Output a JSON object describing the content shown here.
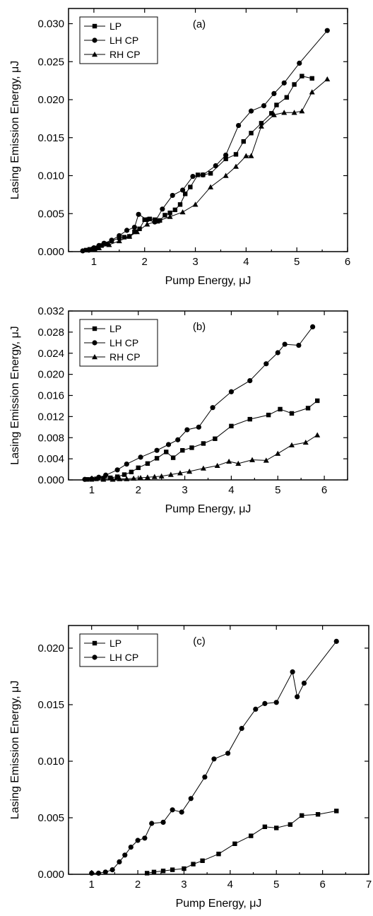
{
  "chart_data": [
    {
      "type": "line",
      "annotation": "(a)",
      "xlabel": "Pump Energy, μJ",
      "ylabel": "Lasing Emission Energy, μJ",
      "xlim": [
        0.5,
        6
      ],
      "ylim": [
        0,
        0.032
      ],
      "xticks": [
        1,
        2,
        3,
        4,
        5,
        6
      ],
      "xtick_labels": [
        "1",
        "2",
        "3",
        "4",
        "5",
        "6"
      ],
      "yticks": [
        0,
        0.005,
        0.01,
        0.015,
        0.02,
        0.025,
        0.03
      ],
      "ytick_labels": [
        "0.000",
        "0.005",
        "0.010",
        "0.015",
        "0.020",
        "0.025",
        "0.030"
      ],
      "legend_position": "top-left",
      "series": [
        {
          "name": "LP",
          "marker": "square",
          "x": [
            0.85,
            0.92,
            0.98,
            1.02,
            1.08,
            1.15,
            1.25,
            1.35,
            1.5,
            1.6,
            1.7,
            1.8,
            1.9,
            2.0,
            2.1,
            2.2,
            2.3,
            2.4,
            2.5,
            2.6,
            2.7,
            2.8,
            2.9,
            3.05,
            3.15,
            3.3,
            3.6,
            3.8,
            3.95,
            4.1,
            4.3,
            4.5,
            4.6,
            4.8,
            4.95,
            5.1,
            5.3
          ],
          "y": [
            0.0002,
            0.0003,
            0.0003,
            0.0003,
            0.0005,
            0.0008,
            0.001,
            0.0014,
            0.0018,
            0.0019,
            0.002,
            0.0026,
            0.003,
            0.0042,
            0.0043,
            0.0042,
            0.0041,
            0.0048,
            0.0051,
            0.0055,
            0.0062,
            0.0076,
            0.0085,
            0.0101,
            0.0101,
            0.0103,
            0.0122,
            0.0128,
            0.0145,
            0.0156,
            0.0169,
            0.0182,
            0.0193,
            0.0203,
            0.022,
            0.0231,
            0.0228
          ]
        },
        {
          "name": "LH CP",
          "marker": "circle",
          "x": [
            0.78,
            0.9,
            1.0,
            1.1,
            1.2,
            1.35,
            1.5,
            1.65,
            1.8,
            1.88,
            2.05,
            2.2,
            2.35,
            2.55,
            2.75,
            2.95,
            3.15,
            3.4,
            3.6,
            3.85,
            4.1,
            4.35,
            4.55,
            4.75,
            5.05,
            5.6
          ],
          "y": [
            0.0001,
            0.0002,
            0.0005,
            0.0008,
            0.0011,
            0.0015,
            0.0021,
            0.0028,
            0.0032,
            0.0049,
            0.0042,
            0.0039,
            0.0056,
            0.0074,
            0.0081,
            0.0099,
            0.0101,
            0.0113,
            0.0127,
            0.0166,
            0.0185,
            0.0192,
            0.0208,
            0.0222,
            0.0248,
            0.0291
          ]
        },
        {
          "name": "RH CP",
          "marker": "triangle",
          "x": [
            0.95,
            1.1,
            1.3,
            1.5,
            1.7,
            1.85,
            2.05,
            2.25,
            2.5,
            2.75,
            3.0,
            3.3,
            3.6,
            3.8,
            4.0,
            4.1,
            4.3,
            4.55,
            4.75,
            4.95,
            5.1,
            5.3,
            5.6
          ],
          "y": [
            0.0003,
            0.0005,
            0.0009,
            0.0014,
            0.002,
            0.0026,
            0.0036,
            0.004,
            0.0046,
            0.0052,
            0.0062,
            0.0085,
            0.01,
            0.0112,
            0.0126,
            0.0126,
            0.0165,
            0.018,
            0.0183,
            0.0183,
            0.0185,
            0.021,
            0.0227
          ]
        }
      ]
    },
    {
      "type": "line",
      "annotation": "(b)",
      "xlabel": "Pump Energy, μJ",
      "ylabel": "Lasing Emission Energy, μJ",
      "xlim": [
        0.5,
        6.5
      ],
      "ylim": [
        0,
        0.032
      ],
      "xticks": [
        1,
        2,
        3,
        4,
        5,
        6
      ],
      "xtick_labels": [
        "1",
        "2",
        "3",
        "4",
        "5",
        "6"
      ],
      "yticks": [
        0,
        0.004,
        0.008,
        0.012,
        0.016,
        0.02,
        0.024,
        0.028,
        0.032
      ],
      "ytick_labels": [
        "0.000",
        "0.004",
        "0.008",
        "0.012",
        "0.016",
        "0.020",
        "0.024",
        "0.028",
        "0.032"
      ],
      "legend_position": "top-left",
      "series": [
        {
          "name": "LP",
          "marker": "square",
          "x": [
            0.9,
            1.0,
            1.1,
            1.25,
            1.4,
            1.55,
            1.7,
            1.85,
            2.0,
            2.2,
            2.4,
            2.6,
            2.75,
            2.95,
            3.15,
            3.4,
            3.65,
            4.0,
            4.4,
            4.8,
            5.05,
            5.3,
            5.65,
            5.85
          ],
          "y": [
            0.0001,
            0.0001,
            0.0002,
            0.0003,
            0.0004,
            0.0006,
            0.001,
            0.0015,
            0.0023,
            0.0031,
            0.0041,
            0.0053,
            0.0042,
            0.0056,
            0.0061,
            0.0069,
            0.0078,
            0.0102,
            0.0115,
            0.0123,
            0.0134,
            0.0126,
            0.0136,
            0.015
          ]
        },
        {
          "name": "LH CP",
          "marker": "circle",
          "x": [
            0.85,
            1.0,
            1.15,
            1.3,
            1.55,
            1.75,
            2.05,
            2.4,
            2.65,
            2.85,
            3.05,
            3.3,
            3.6,
            4.0,
            4.4,
            4.75,
            5.0,
            5.15,
            5.45,
            5.75
          ],
          "y": [
            0.0001,
            0.0002,
            0.0005,
            0.0009,
            0.0019,
            0.003,
            0.0043,
            0.0056,
            0.0067,
            0.0076,
            0.0095,
            0.01,
            0.0137,
            0.0167,
            0.0188,
            0.022,
            0.0241,
            0.0257,
            0.0255,
            0.029
          ]
        },
        {
          "name": "RH CP",
          "marker": "triangle",
          "x": [
            1.25,
            1.45,
            1.6,
            1.75,
            1.9,
            2.05,
            2.2,
            2.35,
            2.5,
            2.7,
            2.9,
            3.1,
            3.4,
            3.7,
            3.95,
            4.15,
            4.45,
            4.75,
            5.0,
            5.3,
            5.6,
            5.85
          ],
          "y": [
            0.0001,
            0.0001,
            0.0002,
            0.0002,
            0.0003,
            0.0004,
            0.0005,
            0.0006,
            0.0007,
            0.001,
            0.0013,
            0.0016,
            0.0022,
            0.0027,
            0.0035,
            0.0031,
            0.0038,
            0.0037,
            0.005,
            0.0066,
            0.0071,
            0.0085
          ]
        }
      ]
    },
    {
      "type": "line",
      "annotation": "(c)",
      "xlabel": "Pump Energy, μJ",
      "ylabel": "Lasing Emission Energy, μJ",
      "xlim": [
        0.5,
        7
      ],
      "ylim": [
        0,
        0.022
      ],
      "xticks": [
        1,
        2,
        3,
        4,
        5,
        6,
        7
      ],
      "xtick_labels": [
        "1",
        "2",
        "3",
        "4",
        "5",
        "6",
        "7"
      ],
      "yticks": [
        0,
        0.005,
        0.01,
        0.015,
        0.02
      ],
      "ytick_labels": [
        "0.000",
        "0.005",
        "0.010",
        "0.015",
        "0.020"
      ],
      "legend_position": "top-left",
      "series": [
        {
          "name": "LP",
          "marker": "square",
          "x": [
            2.2,
            2.35,
            2.55,
            2.75,
            3.0,
            3.2,
            3.4,
            3.75,
            4.1,
            4.45,
            4.75,
            5.0,
            5.3,
            5.55,
            5.9,
            6.3
          ],
          "y": [
            0.0001,
            0.0002,
            0.0003,
            0.0004,
            0.0005,
            0.0009,
            0.0012,
            0.0018,
            0.0027,
            0.0034,
            0.0042,
            0.0041,
            0.0044,
            0.0052,
            0.0053,
            0.0056
          ]
        },
        {
          "name": "LH CP",
          "marker": "circle",
          "x": [
            1.0,
            1.15,
            1.3,
            1.45,
            1.6,
            1.72,
            1.85,
            2.0,
            2.15,
            2.3,
            2.55,
            2.75,
            2.95,
            3.15,
            3.45,
            3.65,
            3.95,
            4.25,
            4.55,
            4.75,
            5.0,
            5.35,
            5.45,
            5.6,
            6.3
          ],
          "y": [
            0.0001,
            0.0001,
            0.0002,
            0.0004,
            0.0011,
            0.0017,
            0.0024,
            0.003,
            0.0032,
            0.0045,
            0.0046,
            0.0057,
            0.0055,
            0.0067,
            0.0086,
            0.0102,
            0.0107,
            0.0129,
            0.0146,
            0.0151,
            0.0152,
            0.0179,
            0.0157,
            0.0169,
            0.0206
          ]
        }
      ]
    }
  ]
}
